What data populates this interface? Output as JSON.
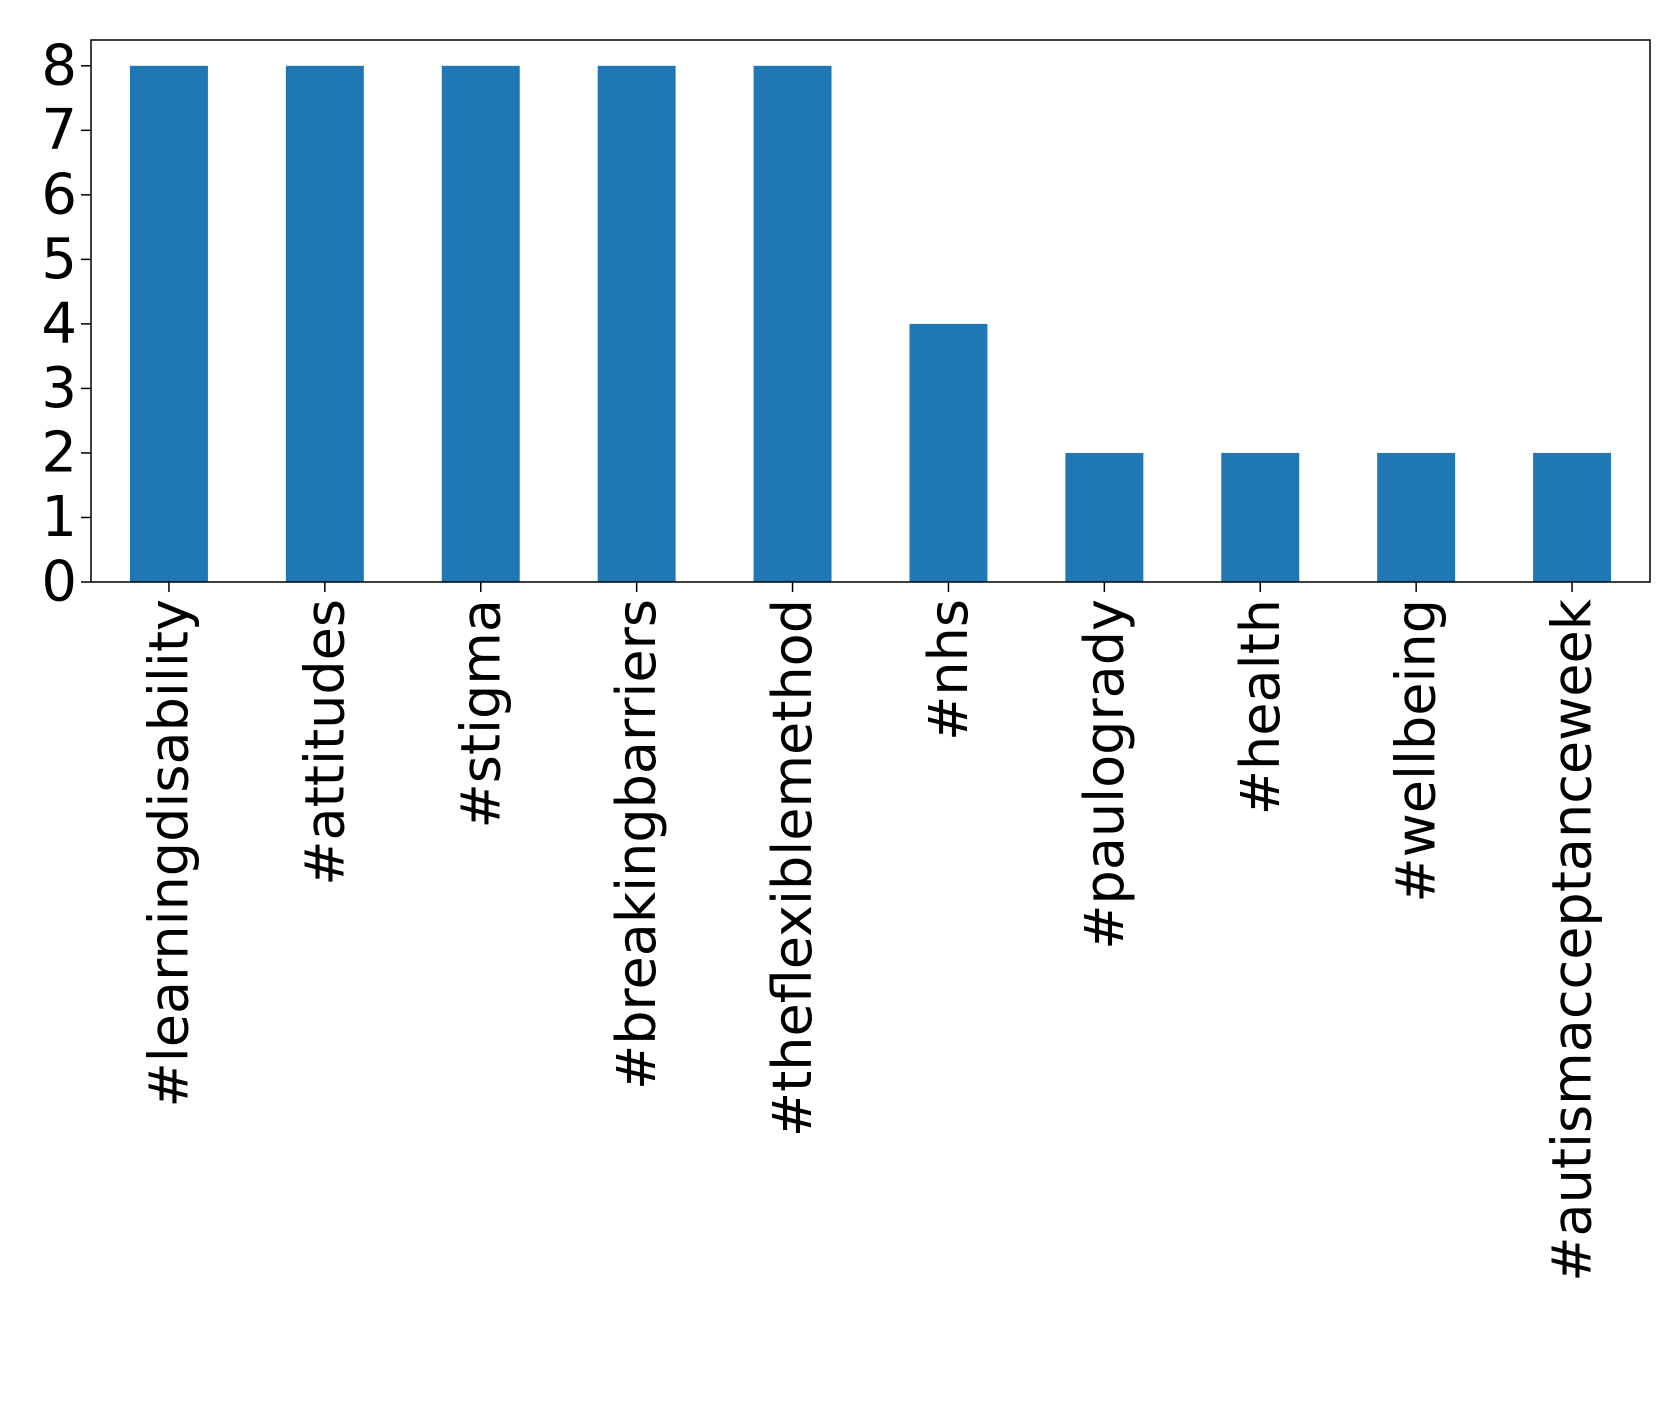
{
  "chart_data": {
    "type": "bar",
    "title": "",
    "xlabel": "",
    "ylabel": "",
    "categories": [
      "#learningdisability",
      "#attitudes",
      "#stigma",
      "#breakingbarriers",
      "#theflexiblemethod",
      "#nhs",
      "#paulogrady",
      "#health",
      "#wellbeing",
      "#autismacceptanceweek"
    ],
    "values": [
      8,
      8,
      8,
      8,
      8,
      4,
      2,
      2,
      2,
      2
    ],
    "ylim": [
      0,
      8.4
    ],
    "yticks": [
      0,
      1,
      2,
      3,
      4,
      5,
      6,
      7,
      8
    ],
    "grid": false,
    "legend": "none",
    "bar_color": "#1f77b4"
  }
}
